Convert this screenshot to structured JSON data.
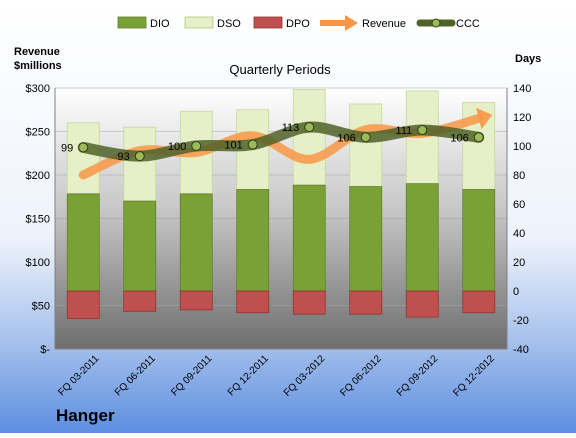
{
  "chart_data": {
    "type": "bar",
    "title": "Quarterly Periods",
    "company": "Hanger",
    "left_axis": {
      "title_line1": "Revenue",
      "title_line2": "$millions",
      "min": 0,
      "max": 300,
      "step": 50,
      "tick_labels": [
        "$-",
        "$50",
        "$100",
        "$150",
        "$200",
        "$250",
        "$300"
      ]
    },
    "right_axis": {
      "title": "Days",
      "min": -40,
      "max": 140,
      "step": 20,
      "tick_labels": [
        "-40",
        "-20",
        "0",
        "20",
        "40",
        "60",
        "80",
        "100",
        "120",
        "140"
      ]
    },
    "categories": [
      "FQ 03-2011",
      "FQ 06-2011",
      "FQ 09-2011",
      "FQ 12-2011",
      "FQ 03-2012",
      "FQ 06-2012",
      "FQ 09-2012",
      "FQ 12-2012"
    ],
    "legend": [
      "DIO",
      "DSO",
      "DPO",
      "Revenue",
      "CCC"
    ],
    "series": [
      {
        "name": "DIO",
        "axis": "right",
        "values": [
          67,
          62,
          67,
          70,
          73,
          72,
          74,
          70
        ],
        "color": "#7aa136"
      },
      {
        "name": "DSO",
        "axis": "right",
        "values": [
          49,
          51,
          57,
          55,
          66,
          57,
          64,
          60
        ],
        "color": "#e6efc8"
      },
      {
        "name": "DPO",
        "axis": "right",
        "values": [
          -19,
          -14,
          -13,
          -15,
          -16,
          -16,
          -18,
          -15
        ],
        "color": "#c0504d"
      },
      {
        "name": "Revenue",
        "axis": "left",
        "values": [
          200,
          228,
          226,
          245,
          218,
          252,
          248,
          265
        ],
        "color": "#f79646"
      },
      {
        "name": "CCC",
        "axis": "right",
        "values": [
          99,
          93,
          100,
          101,
          113,
          106,
          111,
          106
        ],
        "color": "#4f6228"
      }
    ],
    "ccc_labels": [
      "99",
      "93",
      "100",
      "101",
      "113",
      "106",
      "111",
      "106"
    ]
  }
}
